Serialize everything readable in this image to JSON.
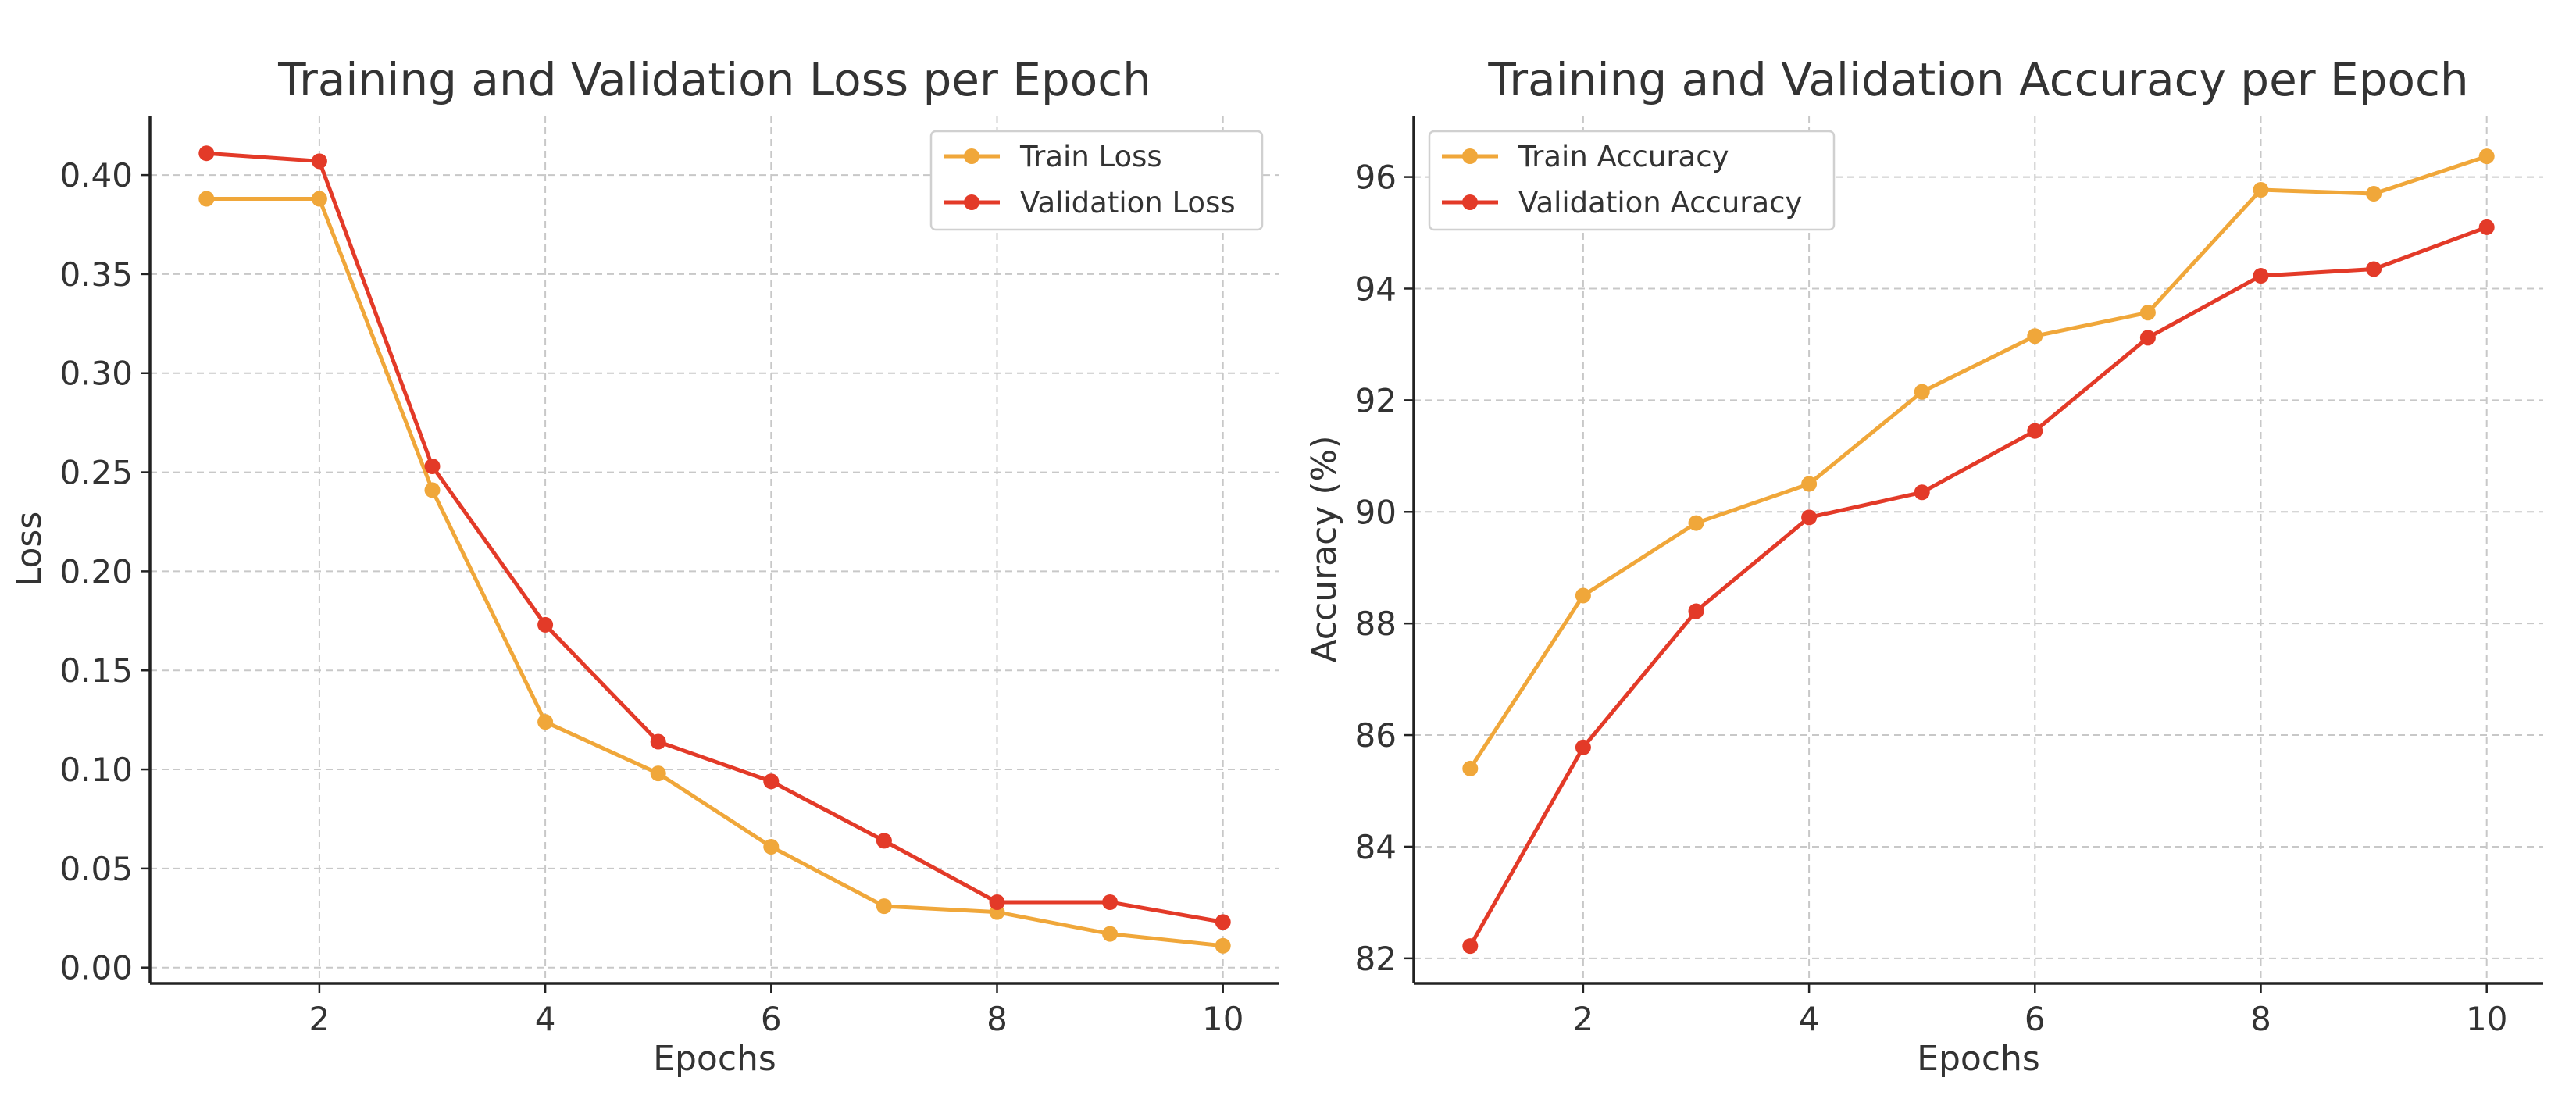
{
  "chart_data": [
    {
      "type": "line",
      "title": "Training and Validation Loss per Epoch",
      "xlabel": "Epochs",
      "ylabel": "Loss",
      "x": [
        1,
        2,
        3,
        4,
        5,
        6,
        7,
        8,
        9,
        10
      ],
      "xlim": [
        0.5,
        10.5
      ],
      "ylim": [
        -0.008,
        0.43
      ],
      "xticks": [
        2,
        4,
        6,
        8,
        10
      ],
      "xtick_labels": [
        "2",
        "4",
        "6",
        "8",
        "10"
      ],
      "yticks": [
        0.0,
        0.05,
        0.1,
        0.15,
        0.2,
        0.25,
        0.3,
        0.35,
        0.4
      ],
      "ytick_labels": [
        "0.00",
        "0.05",
        "0.10",
        "0.15",
        "0.20",
        "0.25",
        "0.30",
        "0.35",
        "0.40"
      ],
      "grid": true,
      "legend_position": "top-right",
      "series": [
        {
          "name": "Train Loss",
          "color": "#f0a73a",
          "values": [
            0.388,
            0.388,
            0.241,
            0.124,
            0.098,
            0.061,
            0.031,
            0.028,
            0.017,
            0.011
          ]
        },
        {
          "name": "Validation Loss",
          "color": "#e33a28",
          "values": [
            0.411,
            0.407,
            0.253,
            0.173,
            0.114,
            0.094,
            0.064,
            0.033,
            0.033,
            0.023
          ]
        }
      ]
    },
    {
      "type": "line",
      "title": "Training and Validation Accuracy per Epoch",
      "xlabel": "Epochs",
      "ylabel": "Accuracy (%)",
      "x": [
        1,
        2,
        3,
        4,
        5,
        6,
        7,
        8,
        9,
        10
      ],
      "xlim": [
        0.5,
        10.5
      ],
      "ylim": [
        81.55,
        97.1
      ],
      "xticks": [
        2,
        4,
        6,
        8,
        10
      ],
      "xtick_labels": [
        "2",
        "4",
        "6",
        "8",
        "10"
      ],
      "yticks": [
        82,
        84,
        86,
        88,
        90,
        92,
        94,
        96
      ],
      "ytick_labels": [
        "82",
        "84",
        "86",
        "88",
        "90",
        "92",
        "94",
        "96"
      ],
      "grid": true,
      "legend_position": "top-left",
      "series": [
        {
          "name": "Train Accuracy",
          "color": "#f0a73a",
          "values": [
            85.4,
            88.5,
            89.8,
            90.5,
            92.15,
            93.15,
            93.57,
            95.77,
            95.7,
            96.37
          ]
        },
        {
          "name": "Validation Accuracy",
          "color": "#e33a28",
          "values": [
            82.22,
            85.78,
            88.22,
            89.9,
            90.35,
            91.45,
            93.12,
            94.23,
            94.35,
            95.1
          ]
        }
      ]
    }
  ]
}
